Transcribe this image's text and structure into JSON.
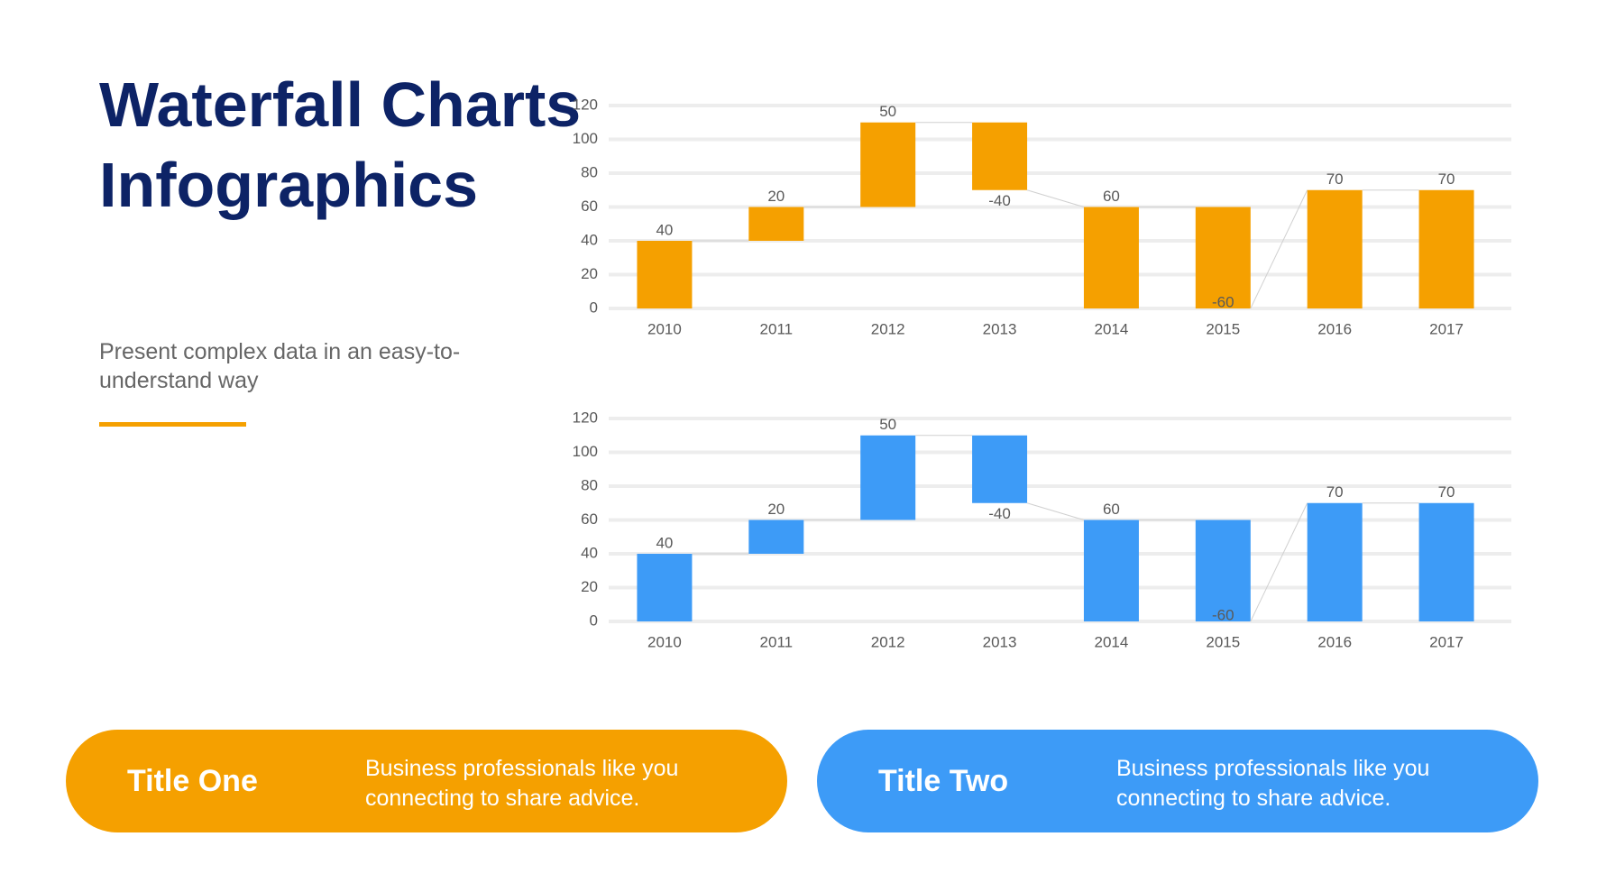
{
  "title": "Waterfall Charts Infographics",
  "subtitle": "Present complex data in an easy-to-understand way",
  "chart_data": [
    {
      "type": "waterfall",
      "categories": [
        "2010",
        "2011",
        "2012",
        "2013",
        "2014",
        "2015",
        "2016",
        "2017"
      ],
      "values": [
        40,
        20,
        50,
        -40,
        60,
        -60,
        70,
        70
      ],
      "is_total": [
        false,
        false,
        false,
        false,
        true,
        false,
        true,
        true
      ],
      "color": "#F5A000",
      "ylim": [
        0,
        120
      ],
      "yticks": [
        0,
        20,
        40,
        60,
        80,
        100,
        120
      ],
      "grid": true
    },
    {
      "type": "waterfall",
      "categories": [
        "2010",
        "2011",
        "2012",
        "2013",
        "2014",
        "2015",
        "2016",
        "2017"
      ],
      "values": [
        40,
        20,
        50,
        -40,
        60,
        -60,
        70,
        70
      ],
      "is_total": [
        false,
        false,
        false,
        false,
        true,
        false,
        true,
        true
      ],
      "color": "#3D9BF7",
      "ylim": [
        0,
        120
      ],
      "yticks": [
        0,
        20,
        40,
        60,
        80,
        100,
        120
      ],
      "grid": true
    }
  ],
  "cards": [
    {
      "title": "Title One",
      "text": "Business professionals like you connecting to share advice.",
      "color": "#F5A000"
    },
    {
      "title": "Title Two",
      "text": "Business professionals like you connecting to share advice.",
      "color": "#3D9BF7"
    }
  ]
}
